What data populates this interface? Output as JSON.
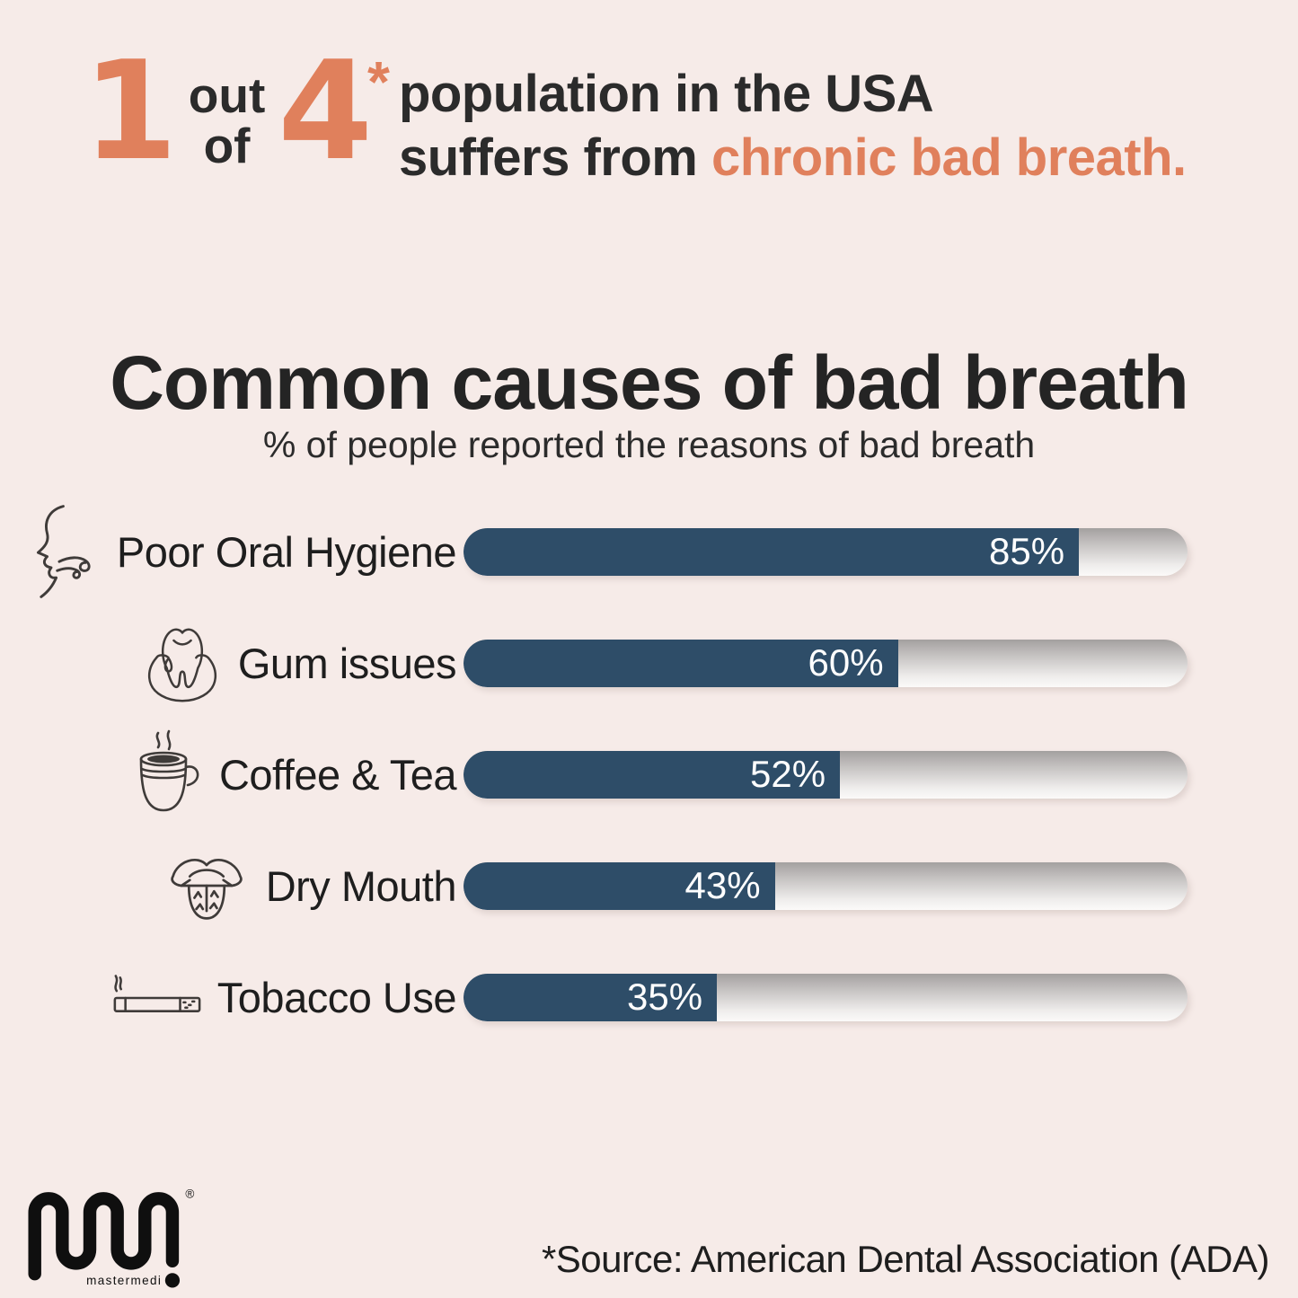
{
  "header": {
    "stat_numerator": "1",
    "connector_line1": "out",
    "connector_line2": "of",
    "stat_denominator": "4",
    "asterisk": "*",
    "line1": "population in the USA",
    "line2_prefix": "suffers from ",
    "line2_highlight": "chronic bad breath."
  },
  "chart_data": {
    "type": "bar",
    "orientation": "horizontal",
    "title": "Common causes of bad breath",
    "subtitle": "% of people reported the reasons of bad breath",
    "categories": [
      "Poor Oral Hygiene",
      "Gum issues",
      "Coffee & Tea",
      "Dry Mouth",
      "Tobacco Use"
    ],
    "values": [
      85,
      60,
      52,
      43,
      35
    ],
    "value_labels": [
      "85%",
      "60%",
      "52%",
      "43%",
      "35%"
    ],
    "icons": [
      "breath-face-icon",
      "tooth-gum-icon",
      "coffee-cup-icon",
      "dry-tongue-icon",
      "cigarette-icon"
    ],
    "xlim": [
      0,
      100
    ],
    "grid": false,
    "legend": false,
    "bar_color": "#2e4d68",
    "track_style": "silver-gradient-pill",
    "value_label_color": "#ffffff"
  },
  "footer": {
    "source_note": "*Source: American Dental Association (ADA)",
    "logo_text": "mastermedi",
    "logo_registered": "®"
  },
  "colors": {
    "background": "#f6ebe8",
    "accent_orange": "#e0805c",
    "text_dark": "#272727",
    "bar_blue": "#2e4d68"
  }
}
